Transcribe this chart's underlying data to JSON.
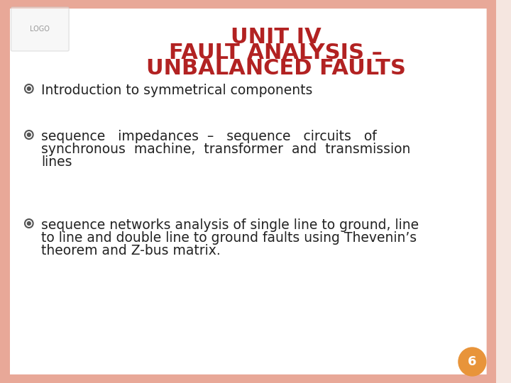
{
  "title_line1": "UNIT IV",
  "title_line2": "FAULT ANALYSIS –",
  "title_line3": "UNBALANCED FAULTS",
  "title_color": "#B22222",
  "title_fontsize": 22,
  "title_bold": true,
  "bg_color": "#FFFFFF",
  "border_color": "#E8A898",
  "slide_bg": "#F5E6E0",
  "bullet_color": "#555555",
  "bullet_circle_color": "#555555",
  "bullet_circle_size": 10,
  "text_color": "#222222",
  "text_fontsize": 13.5,
  "bullet1": "Introduction to symmetrical components",
  "bullet2_line1": "sequence   impedances  –   sequence   circuits   of",
  "bullet2_line2": "synchronous  machine,  transformer  and  transmission",
  "bullet2_line3": "lines",
  "bullet3_line1": "sequence networks analysis of single line to ground, line",
  "bullet3_line2": "to line and double line to ground faults using Thevenin’s",
  "bullet3_line3": "theorem and Z-bus matrix.",
  "page_num": "6",
  "page_num_bg": "#E8943A",
  "page_num_color": "#FFFFFF",
  "page_num_fontsize": 13
}
